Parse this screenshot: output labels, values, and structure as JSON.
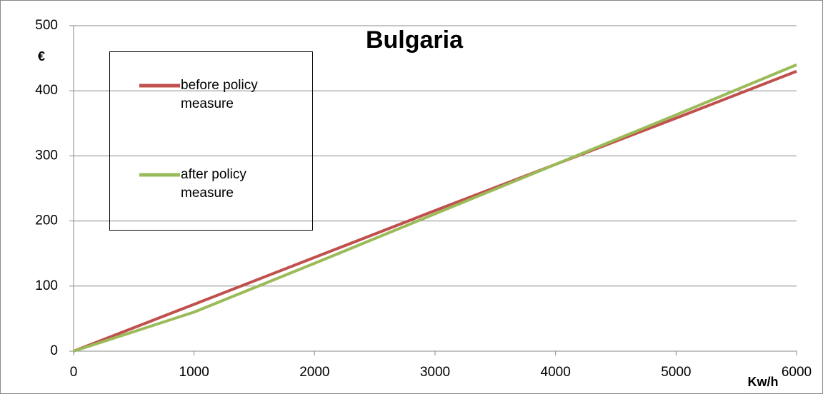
{
  "chart_data": {
    "type": "line",
    "title": "Bulgaria",
    "ylabel": "€",
    "xlabel": "Kw/h",
    "x": [
      0,
      1000,
      2000,
      3000,
      4000,
      5000,
      6000
    ],
    "series": [
      {
        "name": "before policy measure",
        "color": "#c0504d",
        "values": [
          0,
          72,
          144,
          216,
          287,
          358,
          430
        ]
      },
      {
        "name": "after policy measure",
        "color": "#9bbb59",
        "values": [
          0,
          60,
          135,
          211,
          287,
          363,
          440
        ]
      }
    ],
    "xlim": [
      0,
      6000
    ],
    "xticks": [
      0,
      1000,
      2000,
      3000,
      4000,
      5000,
      6000
    ],
    "ylim": [
      0,
      500
    ],
    "yticks": [
      0,
      100,
      200,
      300,
      400,
      500
    ],
    "grid": true,
    "legend": "upper left"
  }
}
